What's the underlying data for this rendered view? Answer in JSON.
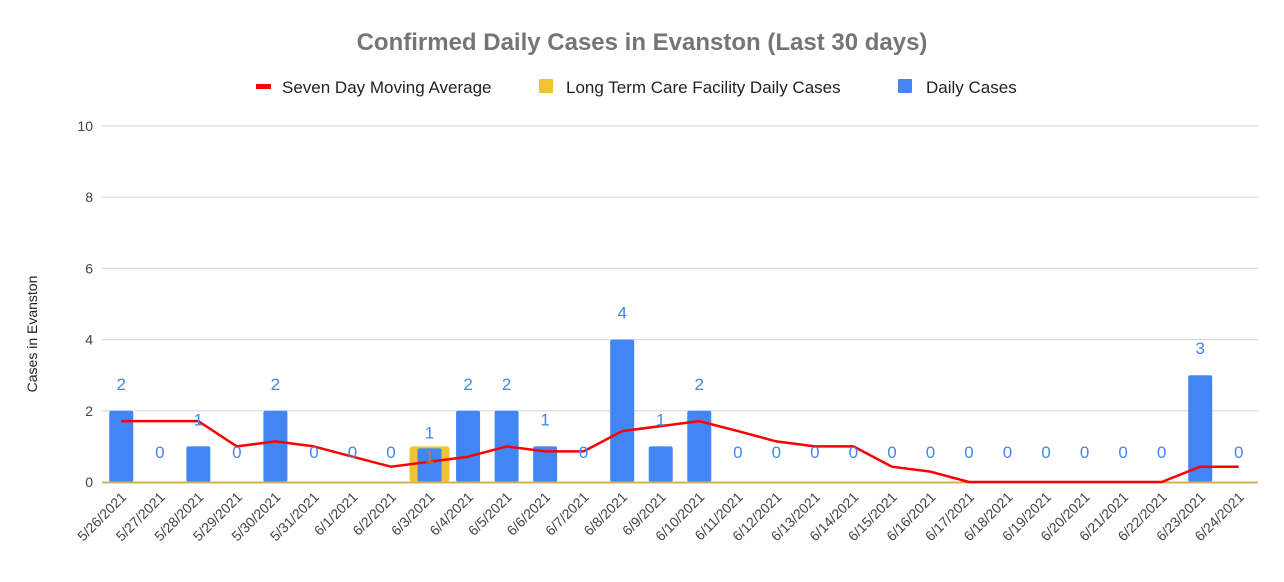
{
  "chart_data": {
    "type": "bar",
    "title": "Confirmed Daily Cases in Evanston (Last 30 days)",
    "xlabel": "",
    "ylabel": "Cases in Evanston",
    "ylim": [
      0,
      10
    ],
    "yticks": [
      0,
      2,
      4,
      6,
      8,
      10
    ],
    "grid": true,
    "legend_position": "top",
    "categories": [
      "5/26/2021",
      "5/27/2021",
      "5/28/2021",
      "5/29/2021",
      "5/30/2021",
      "5/31/2021",
      "6/1/2021",
      "6/2/2021",
      "6/3/2021",
      "6/4/2021",
      "6/5/2021",
      "6/6/2021",
      "6/7/2021",
      "6/8/2021",
      "6/9/2021",
      "6/10/2021",
      "6/11/2021",
      "6/12/2021",
      "6/13/2021",
      "6/14/2021",
      "6/15/2021",
      "6/16/2021",
      "6/17/2021",
      "6/18/2021",
      "6/19/2021",
      "6/20/2021",
      "6/21/2021",
      "6/22/2021",
      "6/23/2021",
      "6/24/2021"
    ],
    "series": [
      {
        "name": "Seven Day Moving Average",
        "type": "line",
        "color": "#ff0000",
        "values": [
          1.71,
          1.71,
          1.71,
          1.0,
          1.14,
          1.0,
          0.71,
          0.43,
          0.57,
          0.71,
          1.0,
          0.86,
          0.86,
          1.43,
          1.57,
          1.71,
          1.43,
          1.14,
          1.0,
          1.0,
          0.43,
          0.29,
          0,
          0,
          0,
          0,
          0,
          0,
          0.43,
          0.43
        ]
      },
      {
        "name": "Long Term Care Facility Daily Cases",
        "type": "bar",
        "color": "#f1c232",
        "label_color": "#b7900f",
        "values": [
          0,
          0,
          0,
          0,
          0,
          0,
          0,
          0,
          1,
          0,
          0,
          0,
          0,
          0,
          0,
          0,
          0,
          0,
          0,
          0,
          0,
          0,
          0,
          0,
          0,
          0,
          0,
          0,
          0,
          0
        ],
        "labels": {
          "8": "1"
        }
      },
      {
        "name": "Daily Cases",
        "type": "bar",
        "color": "#4285f4",
        "label_color": "#4285f4",
        "values": [
          2,
          0,
          1,
          0,
          2,
          0,
          0,
          0,
          1,
          2,
          2,
          1,
          0,
          4,
          1,
          2,
          0,
          0,
          0,
          0,
          0,
          0,
          0,
          0,
          0,
          0,
          0,
          0,
          3,
          0
        ]
      }
    ]
  }
}
